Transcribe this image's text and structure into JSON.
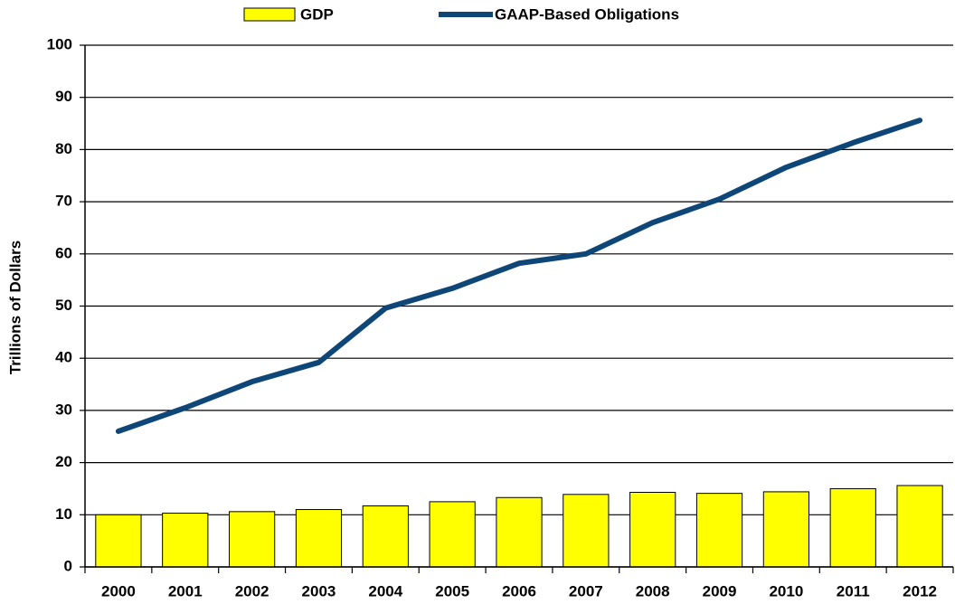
{
  "chart_data": {
    "type": "bar",
    "ylabel": "Trillions of Dollars",
    "categories": [
      "2000",
      "2001",
      "2002",
      "2003",
      "2004",
      "2005",
      "2006",
      "2007",
      "2008",
      "2009",
      "2010",
      "2011",
      "2012"
    ],
    "series": [
      {
        "name": "GDP",
        "type": "bar",
        "color": "#ffff00",
        "values": [
          10.0,
          10.3,
          10.6,
          11.0,
          11.7,
          12.5,
          13.3,
          13.9,
          14.3,
          14.1,
          14.4,
          15.0,
          15.6
        ]
      },
      {
        "name": "GAAP-Based Obligations",
        "type": "line",
        "color": "#0d4677",
        "values": [
          26.0,
          30.5,
          35.5,
          39.2,
          49.6,
          53.4,
          58.2,
          60.0,
          66.0,
          70.5,
          76.6,
          81.3,
          85.6
        ]
      }
    ],
    "ylim": [
      0,
      100
    ],
    "yticks": [
      0,
      10,
      20,
      30,
      40,
      50,
      60,
      70,
      80,
      90,
      100
    ],
    "grid": true,
    "legend": "top"
  }
}
